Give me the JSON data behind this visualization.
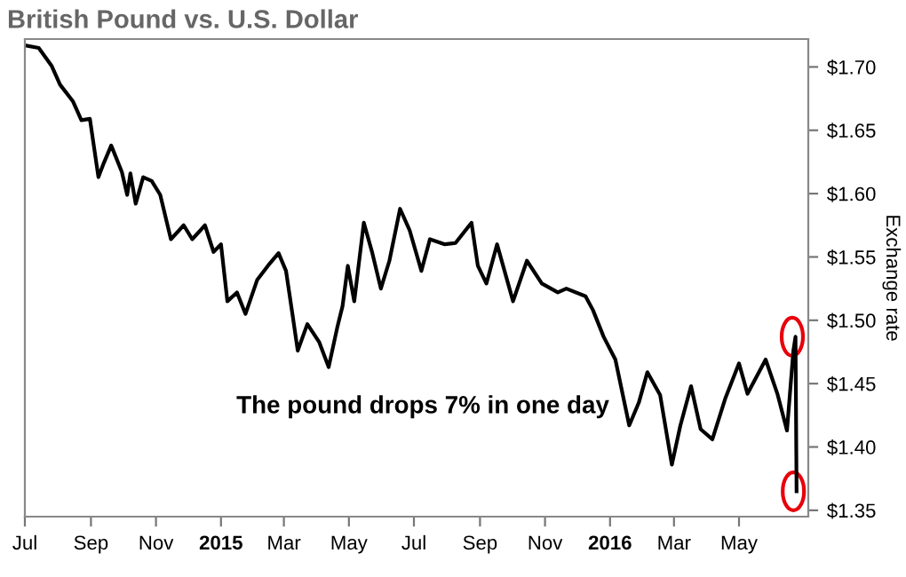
{
  "chart_data": {
    "type": "line",
    "title": "British Pound vs. U.S. Dollar",
    "ylabel": "Exchange rate",
    "annotations": [
      "The pound drops 7% in one day"
    ],
    "x": [
      "2014-07-01",
      "2014-07-14",
      "2014-07-26",
      "2014-08-03",
      "2014-08-15",
      "2014-08-23",
      "2014-08-31",
      "2014-09-08",
      "2014-09-13",
      "2014-09-20",
      "2014-09-30",
      "2014-10-05",
      "2014-10-08",
      "2014-10-13",
      "2014-10-20",
      "2014-10-28",
      "2014-11-05",
      "2014-11-15",
      "2014-11-27",
      "2014-12-05",
      "2014-12-17",
      "2014-12-25",
      "2015-01-01",
      "2015-01-07",
      "2015-01-16",
      "2015-01-24",
      "2015-02-04",
      "2015-02-14",
      "2015-02-24",
      "2015-03-03",
      "2015-03-09",
      "2015-03-14",
      "2015-03-23",
      "2015-04-03",
      "2015-04-12",
      "2015-04-20",
      "2015-04-25",
      "2015-04-30",
      "2015-05-06",
      "2015-05-15",
      "2015-05-23",
      "2015-05-31",
      "2015-06-08",
      "2015-06-18",
      "2015-06-27",
      "2015-07-08",
      "2015-07-16",
      "2015-07-30",
      "2015-08-09",
      "2015-08-24",
      "2015-08-30",
      "2015-09-07",
      "2015-09-17",
      "2015-10-02",
      "2015-10-15",
      "2015-10-29",
      "2015-11-13",
      "2015-11-21",
      "2015-12-09",
      "2015-12-16",
      "2015-12-26",
      "2016-01-06",
      "2016-01-19",
      "2016-01-28",
      "2016-02-05",
      "2016-02-17",
      "2016-02-28",
      "2016-03-07",
      "2016-03-17",
      "2016-03-26",
      "2016-04-06",
      "2016-04-18",
      "2016-05-01",
      "2016-05-09",
      "2016-05-26",
      "2016-06-06",
      "2016-06-15",
      "2016-06-21",
      "2016-06-23",
      "2016-06-24"
    ],
    "series": [
      {
        "color": "#000000",
        "values": [
          1.717,
          1.715,
          1.701,
          1.686,
          1.673,
          1.658,
          1.659,
          1.613,
          1.624,
          1.638,
          1.617,
          1.599,
          1.616,
          1.592,
          1.613,
          1.61,
          1.599,
          1.564,
          1.575,
          1.564,
          1.575,
          1.554,
          1.56,
          1.515,
          1.522,
          1.505,
          1.532,
          1.543,
          1.553,
          1.539,
          1.505,
          1.476,
          1.497,
          1.483,
          1.463,
          1.494,
          1.511,
          1.543,
          1.515,
          1.577,
          1.553,
          1.525,
          1.547,
          1.588,
          1.571,
          1.539,
          1.564,
          1.56,
          1.561,
          1.577,
          1.543,
          1.529,
          1.56,
          1.515,
          1.547,
          1.529,
          1.522,
          1.525,
          1.519,
          1.508,
          1.487,
          1.469,
          1.417,
          1.435,
          1.459,
          1.441,
          1.386,
          1.417,
          1.448,
          1.414,
          1.406,
          1.438,
          1.466,
          1.442,
          1.469,
          1.442,
          1.413,
          1.476,
          1.487,
          1.365
        ]
      }
    ],
    "xlim": [
      "2014-07-01",
      "2016-07-05"
    ],
    "xticks": [
      {
        "value": "2014-07-01",
        "label": "Jul"
      },
      {
        "value": "2014-09-01",
        "label": "Sep"
      },
      {
        "value": "2014-11-01",
        "label": "Nov"
      },
      {
        "value": "2015-01-01",
        "label": "2015"
      },
      {
        "value": "2015-03-01",
        "label": "Mar"
      },
      {
        "value": "2015-05-01",
        "label": "May"
      },
      {
        "value": "2015-07-01",
        "label": "Jul"
      },
      {
        "value": "2015-09-01",
        "label": "Sep"
      },
      {
        "value": "2015-11-01",
        "label": "Nov"
      },
      {
        "value": "2016-01-01",
        "label": "2016"
      },
      {
        "value": "2016-03-01",
        "label": "Mar"
      },
      {
        "value": "2016-05-01",
        "label": "May"
      }
    ],
    "ylim": [
      1.345,
      1.722
    ],
    "yticks": [
      {
        "value": 1.35,
        "label": "$1.35"
      },
      {
        "value": 1.4,
        "label": "$1.40"
      },
      {
        "value": 1.45,
        "label": "$1.45"
      },
      {
        "value": 1.5,
        "label": "$1.50"
      },
      {
        "value": 1.55,
        "label": "$1.55"
      },
      {
        "value": 1.6,
        "label": "$1.60"
      },
      {
        "value": 1.65,
        "label": "$1.65"
      },
      {
        "value": 1.7,
        "label": "$1.70"
      }
    ],
    "grid": false,
    "marker": "none",
    "line_style": "solid"
  }
}
